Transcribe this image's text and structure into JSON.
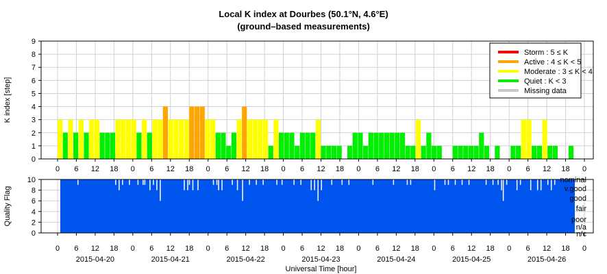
{
  "title": "Local K index at Dourbes (50.1°N, 4.6°E)",
  "subtitle": "(ground–based measurements)",
  "colors": {
    "storm": "#ff0000",
    "active": "#ffa500",
    "moderate": "#ffff00",
    "quiet": "#00ee00",
    "missing": "#c8c8c8",
    "quality": "#0055ee"
  },
  "chart_data": [
    {
      "type": "bar",
      "ylabel": "K index [step]",
      "ylim": [
        0,
        9
      ],
      "yticks": [
        "0",
        "1",
        "2",
        "3",
        "4",
        "5",
        "6",
        "7",
        "8",
        "9"
      ],
      "grid": true,
      "x_start": "2015-04-20T00:00",
      "interval_hours": 3,
      "xtick_labels": [
        "0",
        "6",
        "12",
        "18",
        "0",
        "6",
        "12",
        "18",
        "0",
        "6",
        "12",
        "18",
        "0",
        "6",
        "12",
        "18",
        "0",
        "6",
        "12",
        "18",
        "0",
        "6",
        "12",
        "18",
        "0",
        "6",
        "12",
        "18",
        "0"
      ],
      "legend_position": "top-right",
      "legend": [
        {
          "key": "storm",
          "label": "Storm : 5 ≤ K"
        },
        {
          "key": "active",
          "label": "Active : 4 ≤ K < 5"
        },
        {
          "key": "moderate",
          "label": "Moderate : 3 ≤ K < 4"
        },
        {
          "key": "quiet",
          "label": "Quiet : K < 3"
        },
        {
          "key": "missing",
          "label": "Missing data"
        }
      ],
      "values": [
        3,
        2,
        3,
        2,
        3,
        2,
        3,
        3,
        2,
        2,
        2,
        3,
        3,
        3,
        3,
        2,
        3,
        2,
        3,
        3,
        4,
        3,
        3,
        3,
        3,
        4,
        4,
        4,
        3,
        3,
        2,
        2,
        1,
        2,
        3,
        4,
        3,
        3,
        3,
        3,
        1,
        3,
        2,
        2,
        2,
        1,
        2,
        2,
        2,
        3,
        1,
        1,
        1,
        1,
        0,
        1,
        2,
        2,
        1,
        2,
        2,
        2,
        2,
        2,
        2,
        2,
        1,
        1,
        3,
        1,
        2,
        1,
        1,
        0,
        0,
        1,
        1,
        1,
        1,
        1,
        2,
        1,
        0,
        1,
        0,
        0,
        1,
        1,
        3,
        3,
        1,
        1,
        3,
        1,
        1,
        0,
        0,
        1,
        0,
        0
      ]
    },
    {
      "type": "bar",
      "ylabel": "Quality Flag",
      "ylim": [
        0,
        10
      ],
      "yticks": [
        "0",
        "2",
        "4",
        "6",
        "8",
        "10"
      ],
      "right_labels": [
        "nominal",
        "v.good",
        "good",
        "fair",
        "poor",
        "n/a",
        "n/c"
      ],
      "xlabel": "Universal Time [hour]",
      "date_labels": [
        "2015-04-20",
        "2015-04-21",
        "2015-04-22",
        "2015-04-23",
        "2015-04-24",
        "2015-04-25",
        "2015-04-26"
      ],
      "values_note": "quality value per 15-minute interval",
      "dips": [
        [
          20,
          9
        ],
        [
          64,
          9
        ],
        [
          68,
          8
        ],
        [
          72,
          9
        ],
        [
          80,
          9
        ],
        [
          90,
          9
        ],
        [
          96,
          9
        ],
        [
          98,
          9
        ],
        [
          104,
          8
        ],
        [
          108,
          9
        ],
        [
          112,
          8
        ],
        [
          116,
          6
        ],
        [
          144,
          8
        ],
        [
          148,
          8
        ],
        [
          150,
          9
        ],
        [
          154,
          8
        ],
        [
          160,
          8
        ],
        [
          178,
          9
        ],
        [
          182,
          9
        ],
        [
          184,
          8
        ],
        [
          188,
          8
        ],
        [
          200,
          9
        ],
        [
          206,
          8
        ],
        [
          212,
          6
        ],
        [
          220,
          9
        ],
        [
          228,
          9
        ],
        [
          236,
          9
        ],
        [
          252,
          9
        ],
        [
          258,
          9
        ],
        [
          272,
          9
        ],
        [
          280,
          9
        ],
        [
          292,
          8
        ],
        [
          296,
          8
        ],
        [
          300,
          6
        ],
        [
          304,
          8
        ],
        [
          316,
          9
        ],
        [
          328,
          9
        ],
        [
          336,
          9
        ],
        [
          364,
          9
        ],
        [
          388,
          9
        ],
        [
          404,
          9
        ],
        [
          408,
          9
        ],
        [
          436,
          8
        ],
        [
          448,
          9
        ],
        [
          452,
          9
        ],
        [
          460,
          9
        ],
        [
          468,
          9
        ],
        [
          476,
          9
        ],
        [
          496,
          9
        ],
        [
          504,
          9
        ],
        [
          510,
          9
        ],
        [
          514,
          8
        ],
        [
          516,
          6
        ],
        [
          520,
          9
        ],
        [
          532,
          8
        ],
        [
          536,
          9
        ],
        [
          548,
          8
        ],
        [
          556,
          8
        ],
        [
          560,
          8
        ],
        [
          568,
          9
        ],
        [
          572,
          8
        ],
        [
          576,
          9
        ]
      ]
    }
  ]
}
